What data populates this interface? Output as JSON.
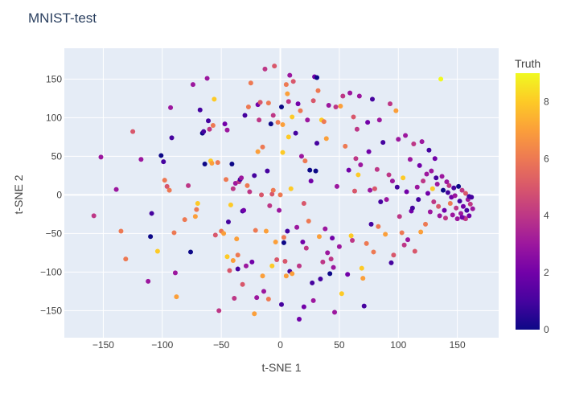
{
  "chart_data": {
    "type": "scatter",
    "title": "MNIST-test",
    "xlabel": "t-SNE 1",
    "ylabel": "t-SNE 2",
    "xlim": [
      -183,
      185
    ],
    "ylim": [
      -185,
      190
    ],
    "x_ticks": [
      -150,
      -100,
      -50,
      0,
      50,
      100,
      150
    ],
    "y_ticks": [
      -150,
      -100,
      -50,
      0,
      50,
      100,
      150
    ],
    "x_tick_labels": [
      "−150",
      "−100",
      "−50",
      "0",
      "50",
      "100",
      "150"
    ],
    "y_tick_labels": [
      "−150",
      "−100",
      "−50",
      "0",
      "50",
      "100",
      "150"
    ],
    "grid": true,
    "plot_background": "#e5ecf6",
    "colorbar": {
      "title": "Truth",
      "range": [
        0,
        9
      ],
      "ticks": [
        0,
        2,
        4,
        6,
        8
      ],
      "tick_labels": [
        "0",
        "2",
        "4",
        "6",
        "8"
      ],
      "colorscale": [
        "#0d0887",
        "#46039f",
        "#7201a8",
        "#9c179e",
        "#bd3786",
        "#d8576b",
        "#ed7953",
        "#fb9f3a",
        "#fdca26",
        "#f0f921"
      ]
    },
    "points": [
      [
        -158,
        -27,
        4
      ],
      [
        -152,
        49,
        3
      ],
      [
        -139,
        7,
        3
      ],
      [
        -135,
        -47,
        6
      ],
      [
        -131,
        -83,
        6
      ],
      [
        -125,
        82,
        5
      ],
      [
        -118,
        46,
        3
      ],
      [
        -112,
        -112,
        3
      ],
      [
        -110,
        -54,
        0
      ],
      [
        -109,
        -24,
        1
      ],
      [
        -104,
        -73,
        8
      ],
      [
        -101,
        51,
        0
      ],
      [
        -99,
        43,
        1
      ],
      [
        -98,
        19,
        6
      ],
      [
        -96,
        11,
        5
      ],
      [
        -94,
        6,
        6
      ],
      [
        -93,
        113,
        3
      ],
      [
        -92,
        74,
        1
      ],
      [
        -90,
        -49,
        6
      ],
      [
        -89,
        -101,
        3
      ],
      [
        -88,
        -132,
        7
      ],
      [
        -81,
        -32,
        6
      ],
      [
        -78,
        12,
        4
      ],
      [
        -76,
        -74,
        0
      ],
      [
        -74,
        143,
        3
      ],
      [
        -72,
        -28,
        7
      ],
      [
        -71,
        -19,
        6
      ],
      [
        -70,
        -11,
        8
      ],
      [
        -68,
        110,
        1
      ],
      [
        -66,
        80,
        0
      ],
      [
        -65,
        82,
        1
      ],
      [
        -64,
        40,
        0
      ],
      [
        -62,
        151,
        3
      ],
      [
        -61,
        96,
        1
      ],
      [
        -60,
        85,
        4
      ],
      [
        -59,
        44,
        8
      ],
      [
        -58,
        41,
        7
      ],
      [
        -57,
        90,
        6
      ],
      [
        -56,
        124,
        8
      ],
      [
        -55,
        -52,
        5
      ],
      [
        -53,
        42,
        6
      ],
      [
        -52,
        -150,
        4
      ],
      [
        -50,
        -47,
        6
      ],
      [
        -48,
        -50,
        7
      ],
      [
        -47,
        92,
        2
      ],
      [
        -46,
        20,
        6
      ],
      [
        -45,
        84,
        3
      ],
      [
        -45,
        -80,
        8
      ],
      [
        -44,
        -35,
        1
      ],
      [
        -43,
        -98,
        5
      ],
      [
        -42,
        -13,
        8
      ],
      [
        -41,
        40,
        0
      ],
      [
        -40,
        8,
        4
      ],
      [
        -40,
        -85,
        7
      ],
      [
        -39,
        -134,
        4
      ],
      [
        -38,
        15,
        3
      ],
      [
        -37,
        -57,
        7
      ],
      [
        -36,
        -78,
        6
      ],
      [
        -36,
        -96,
        1
      ],
      [
        -35,
        17,
        4
      ],
      [
        -34,
        20,
        1
      ],
      [
        -33,
        22,
        3
      ],
      [
        -32,
        -21,
        1
      ],
      [
        -32,
        -116,
        5
      ],
      [
        -31,
        -20,
        2
      ],
      [
        -30,
        103,
        1
      ],
      [
        -29,
        -92,
        3
      ],
      [
        -28,
        12,
        6
      ],
      [
        -27,
        114,
        6
      ],
      [
        -26,
        4,
        4
      ],
      [
        -25,
        145,
        6
      ],
      [
        -24,
        -87,
        2
      ],
      [
        -22,
        25,
        1
      ],
      [
        -22,
        -154,
        7
      ],
      [
        -21,
        -46,
        6
      ],
      [
        -20,
        -133,
        3
      ],
      [
        -19,
        56,
        7
      ],
      [
        -19,
        117,
        2
      ],
      [
        -18,
        97,
        4
      ],
      [
        -17,
        120,
        5
      ],
      [
        -16,
        0,
        5
      ],
      [
        -15,
        62,
        6
      ],
      [
        -15,
        -105,
        7
      ],
      [
        -14,
        -125,
        3
      ],
      [
        -13,
        163,
        4
      ],
      [
        -12,
        -47,
        7
      ],
      [
        -11,
        31,
        1
      ],
      [
        -10,
        119,
        6
      ],
      [
        -10,
        -135,
        6
      ],
      [
        -9,
        -14,
        4
      ],
      [
        -8,
        92,
        0
      ],
      [
        -7,
        1,
        5
      ],
      [
        -7,
        -92,
        8
      ],
      [
        -6,
        6,
        6
      ],
      [
        -6,
        103,
        4
      ],
      [
        -5,
        167,
        5
      ],
      [
        -4,
        -61,
        7
      ],
      [
        -3,
        -84,
        5
      ],
      [
        -2,
        94,
        6
      ],
      [
        -1,
        -20,
        3
      ],
      [
        0,
        0,
        6
      ],
      [
        1,
        114,
        0
      ],
      [
        1,
        -142,
        1
      ],
      [
        2,
        55,
        8
      ],
      [
        2,
        91,
        7
      ],
      [
        3,
        -55,
        6
      ],
      [
        3,
        -62,
        0
      ],
      [
        4,
        -86,
        5
      ],
      [
        5,
        143,
        6
      ],
      [
        5,
        -105,
        7
      ],
      [
        6,
        131,
        7
      ],
      [
        6,
        -47,
        1
      ],
      [
        7,
        75,
        8
      ],
      [
        7,
        121,
        4
      ],
      [
        8,
        -99,
        1
      ],
      [
        8,
        155,
        3
      ],
      [
        9,
        8,
        8
      ],
      [
        10,
        -102,
        7
      ],
      [
        10,
        101,
        8
      ],
      [
        11,
        147,
        5
      ],
      [
        13,
        80,
        1
      ],
      [
        14,
        -42,
        3
      ],
      [
        15,
        118,
        2
      ],
      [
        16,
        -92,
        4
      ],
      [
        16,
        -161,
        2
      ],
      [
        17,
        109,
        6
      ],
      [
        18,
        50,
        3
      ],
      [
        19,
        -61,
        2
      ],
      [
        20,
        -11,
        5
      ],
      [
        20,
        -145,
        2
      ],
      [
        21,
        44,
        6
      ],
      [
        22,
        -69,
        4
      ],
      [
        23,
        97,
        3
      ],
      [
        24,
        -34,
        6
      ],
      [
        25,
        32,
        0
      ],
      [
        26,
        18,
        2
      ],
      [
        27,
        -114,
        1
      ],
      [
        28,
        122,
        5
      ],
      [
        28,
        -137,
        3
      ],
      [
        29,
        153,
        2
      ],
      [
        30,
        31,
        0
      ],
      [
        31,
        67,
        1
      ],
      [
        31,
        152,
        0
      ],
      [
        32,
        135,
        6
      ],
      [
        33,
        -54,
        7
      ],
      [
        34,
        -109,
        1
      ],
      [
        35,
        97,
        8
      ],
      [
        36,
        -87,
        4
      ],
      [
        37,
        95,
        6
      ],
      [
        38,
        -44,
        3
      ],
      [
        39,
        73,
        7
      ],
      [
        40,
        -75,
        3
      ],
      [
        41,
        116,
        3
      ],
      [
        42,
        -102,
        0
      ],
      [
        43,
        -83,
        4
      ],
      [
        44,
        -56,
        2
      ],
      [
        45,
        -94,
        3
      ],
      [
        46,
        -152,
        3
      ],
      [
        47,
        114,
        4
      ],
      [
        48,
        11,
        3
      ],
      [
        50,
        -67,
        3
      ],
      [
        51,
        115,
        7
      ],
      [
        52,
        -128,
        8
      ],
      [
        53,
        128,
        4
      ],
      [
        55,
        63,
        6
      ],
      [
        57,
        -103,
        2
      ],
      [
        58,
        32,
        2
      ],
      [
        59,
        132,
        3
      ],
      [
        60,
        -53,
        8
      ],
      [
        61,
        -59,
        4
      ],
      [
        62,
        101,
        5
      ],
      [
        63,
        5,
        5
      ],
      [
        64,
        47,
        4
      ],
      [
        65,
        85,
        4
      ],
      [
        66,
        26,
        8
      ],
      [
        67,
        128,
        3
      ],
      [
        68,
        39,
        3
      ],
      [
        69,
        -95,
        8
      ],
      [
        70,
        -108,
        7
      ],
      [
        71,
        -144,
        1
      ],
      [
        73,
        -63,
        6
      ],
      [
        74,
        94,
        2
      ],
      [
        75,
        56,
        2
      ],
      [
        76,
        6,
        3
      ],
      [
        77,
        -38,
        1
      ],
      [
        78,
        124,
        1
      ],
      [
        79,
        -74,
        6
      ],
      [
        80,
        8,
        5
      ],
      [
        82,
        33,
        4
      ],
      [
        83,
        -41,
        6
      ],
      [
        84,
        97,
        3
      ],
      [
        85,
        -9,
        1
      ],
      [
        87,
        68,
        1
      ],
      [
        89,
        -51,
        7
      ],
      [
        90,
        -6,
        3
      ],
      [
        92,
        26,
        4
      ],
      [
        93,
        118,
        4
      ],
      [
        94,
        -88,
        1
      ],
      [
        95,
        18,
        3
      ],
      [
        96,
        -78,
        5
      ],
      [
        98,
        109,
        7
      ],
      [
        99,
        10,
        1
      ],
      [
        100,
        72,
        3
      ],
      [
        101,
        -28,
        4
      ],
      [
        103,
        -49,
        6
      ],
      [
        104,
        22,
        8
      ],
      [
        105,
        -65,
        4
      ],
      [
        106,
        77,
        3
      ],
      [
        107,
        4,
        2
      ],
      [
        108,
        -58,
        3
      ],
      [
        110,
        46,
        3
      ],
      [
        111,
        -21,
        2
      ],
      [
        112,
        -17,
        1
      ],
      [
        113,
        66,
        4
      ],
      [
        114,
        -73,
        5
      ],
      [
        116,
        10,
        3
      ],
      [
        117,
        -6,
        1
      ],
      [
        118,
        38,
        2
      ],
      [
        119,
        -48,
        7
      ],
      [
        120,
        69,
        3
      ],
      [
        121,
        18,
        4
      ],
      [
        123,
        -38,
        6
      ],
      [
        124,
        27,
        3
      ],
      [
        125,
        2,
        2
      ],
      [
        126,
        58,
        1
      ],
      [
        127,
        -22,
        3
      ],
      [
        128,
        31,
        3
      ],
      [
        129,
        8,
        8
      ],
      [
        130,
        -9,
        4
      ],
      [
        131,
        47,
        2
      ],
      [
        132,
        22,
        1
      ],
      [
        133,
        14,
        3
      ],
      [
        134,
        -15,
        5
      ],
      [
        135,
        -27,
        3
      ],
      [
        136,
        150,
        9
      ],
      [
        137,
        24,
        3
      ],
      [
        138,
        6,
        0
      ],
      [
        139,
        -20,
        2
      ],
      [
        140,
        -30,
        4
      ],
      [
        141,
        17,
        3
      ],
      [
        142,
        3,
        1
      ],
      [
        143,
        12,
        4
      ],
      [
        144,
        -11,
        6
      ],
      [
        145,
        -3,
        2
      ],
      [
        146,
        -26,
        3
      ],
      [
        147,
        9,
        1
      ],
      [
        148,
        -1,
        3
      ],
      [
        149,
        -17,
        4
      ],
      [
        150,
        -31,
        3
      ],
      [
        151,
        11,
        0
      ],
      [
        152,
        -8,
        1
      ],
      [
        153,
        -24,
        3
      ],
      [
        154,
        6,
        4
      ],
      [
        155,
        -15,
        2
      ],
      [
        156,
        -30,
        3
      ],
      [
        157,
        2,
        5
      ],
      [
        158,
        -20,
        1
      ],
      [
        159,
        -6,
        3
      ],
      [
        160,
        -27,
        2
      ],
      [
        161,
        -12,
        4
      ],
      [
        162,
        -3,
        1
      ],
      [
        163,
        -18,
        3
      ],
      [
        160,
        -2,
        1
      ],
      [
        157,
        -31,
        4
      ],
      [
        154,
        -29,
        2
      ]
    ]
  }
}
